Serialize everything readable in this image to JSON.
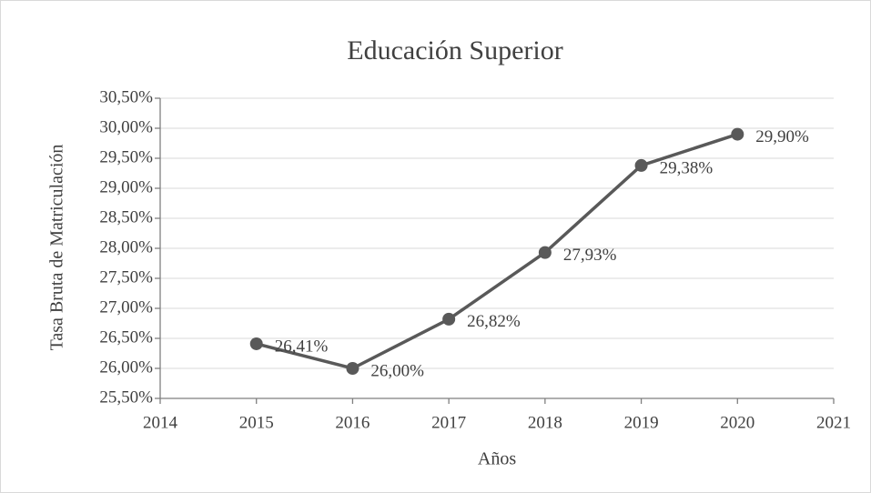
{
  "chart_data": {
    "type": "line",
    "title": "Educación Superior",
    "x_label": "Años",
    "y_label": "Tasa Bruta de Matriculación",
    "x": [
      2015,
      2016,
      2017,
      2018,
      2019,
      2020
    ],
    "series": [
      {
        "name": "Educación Superior",
        "color": "#595959",
        "values": [
          26.41,
          26.0,
          26.82,
          27.93,
          29.38,
          29.9
        ],
        "value_labels": [
          "26,41%",
          "26,00%",
          "26,82%",
          "27,93%",
          "29,38%",
          "29,90%"
        ]
      }
    ],
    "xlim": [
      2014,
      2021
    ],
    "xticks": [
      2014,
      2015,
      2016,
      2017,
      2018,
      2019,
      2020,
      2021
    ],
    "ylim": [
      25.5,
      30.5
    ],
    "yticks": [
      {
        "value": 25.5,
        "label": "25,50%"
      },
      {
        "value": 26.0,
        "label": "26,00%"
      },
      {
        "value": 26.5,
        "label": "26,50%"
      },
      {
        "value": 27.0,
        "label": "27,00%"
      },
      {
        "value": 27.5,
        "label": "27,50%"
      },
      {
        "value": 28.0,
        "label": "28,00%"
      },
      {
        "value": 28.5,
        "label": "28,50%"
      },
      {
        "value": 29.0,
        "label": "29,00%"
      },
      {
        "value": 29.5,
        "label": "29,50%"
      },
      {
        "value": 30.0,
        "label": "30,00%"
      },
      {
        "value": 30.5,
        "label": "30,50%"
      }
    ],
    "grid": true
  }
}
